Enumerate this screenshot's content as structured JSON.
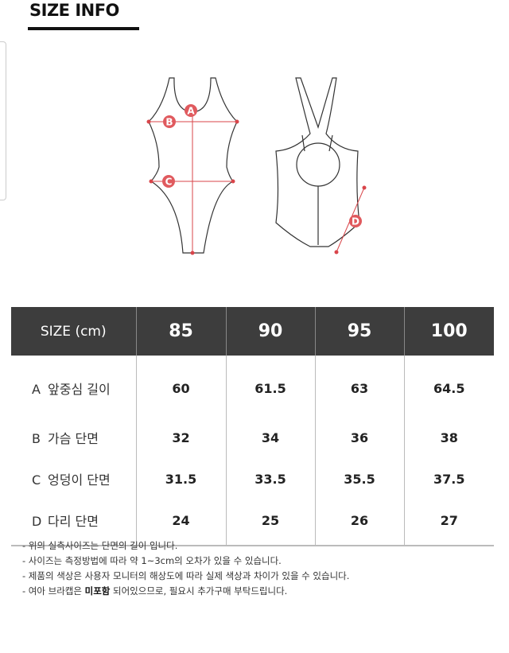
{
  "header": {
    "title": "SIZE INFO"
  },
  "diagram": {
    "labels": [
      "A",
      "B",
      "C",
      "D"
    ],
    "accent_color": "#d9454a"
  },
  "table": {
    "header": [
      "SIZE (cm)",
      "85",
      "90",
      "95",
      "100"
    ],
    "rows": [
      {
        "letter": "A",
        "name": "앞중심 길이",
        "values": [
          "60",
          "61.5",
          "63",
          "64.5"
        ]
      },
      {
        "letter": "B",
        "name": "가슴 단면",
        "values": [
          "32",
          "34",
          "36",
          "38"
        ]
      },
      {
        "letter": "C",
        "name": "엉덩이 단면",
        "values": [
          "31.5",
          "33.5",
          "35.5",
          "37.5"
        ]
      },
      {
        "letter": "D",
        "name": "다리 단면",
        "values": [
          "24",
          "25",
          "26",
          "27"
        ]
      }
    ],
    "header_bg": "#3d3d3d"
  },
  "notes": {
    "n1": "- 위의 실측사이즈는 단면의 길이 입니다.",
    "n2": "- 사이즈는 측정방법에 따라 약 1~3cm의 오차가 있을 수 있습니다.",
    "n3": "- 제품의 색상은 사용자 모니터의 해상도에 따라 실제 색상과 차이가 있을 수 있습니다.",
    "n4_pre": "- 여아 브라캡은 ",
    "n4_bold": "미포함",
    "n4_post": " 되어있으므로, 필요시 추가구매 부탁드립니다."
  }
}
